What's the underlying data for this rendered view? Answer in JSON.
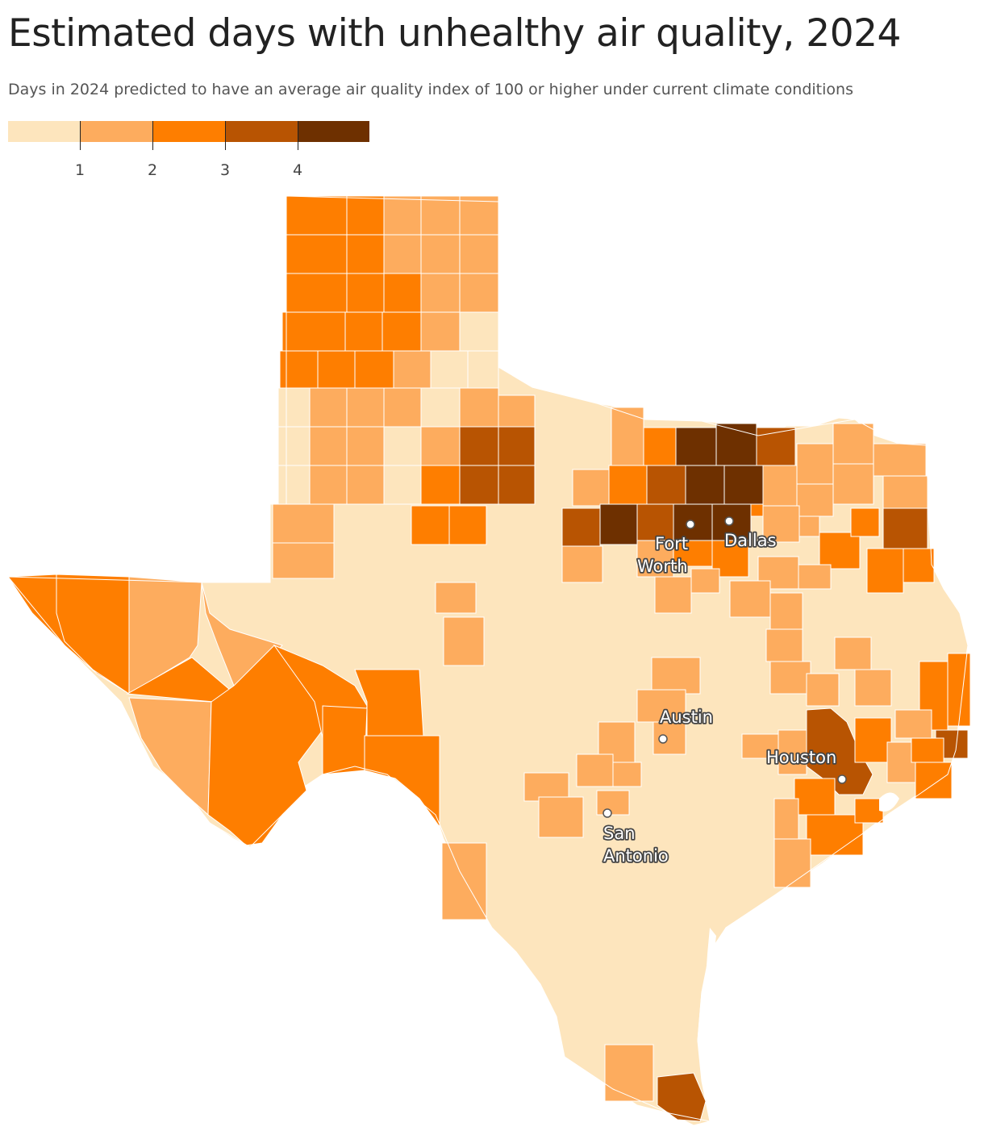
{
  "title": "Estimated days with unhealthy air quality, 2024",
  "subtitle": "Days in 2024 predicted to have an average air quality index of 100 or higher under current climate conditions",
  "legend": {
    "colors": [
      "#fde5bd",
      "#fdac5e",
      "#fe7e00",
      "#b85402",
      "#6e3000"
    ],
    "ticks": [
      "1",
      "2",
      "3",
      "4"
    ]
  },
  "map": {
    "region": "Texas counties",
    "cities": [
      {
        "name_lines": [
          "Fort",
          "Worth"
        ]
      },
      {
        "name_lines": [
          "Dallas"
        ]
      },
      {
        "name_lines": [
          "Austin"
        ]
      },
      {
        "name_lines": [
          "Houston"
        ]
      },
      {
        "name_lines": [
          "San",
          "Antonio"
        ]
      }
    ]
  }
}
